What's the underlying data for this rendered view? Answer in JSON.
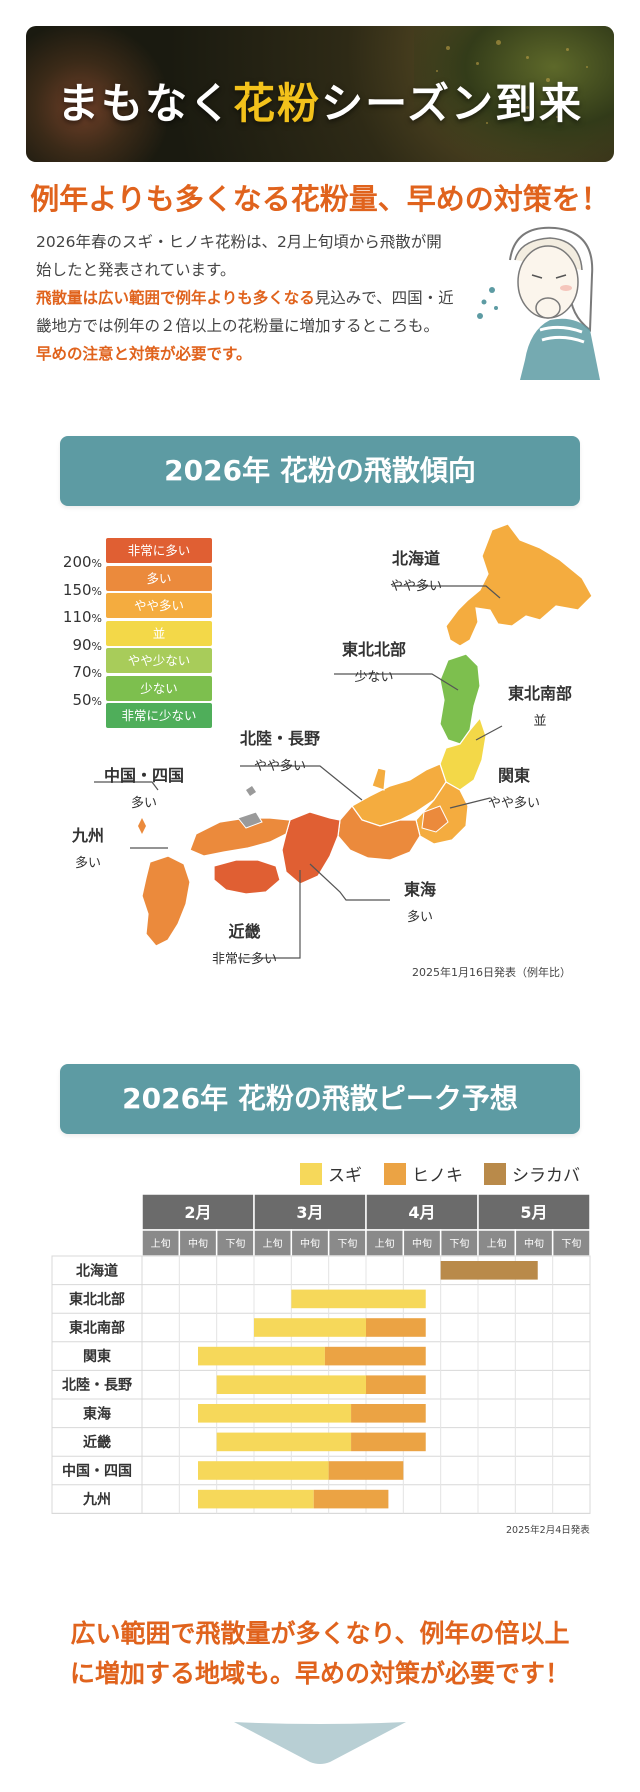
{
  "hero": {
    "title_before": "まもなく",
    "title_highlight": "花粉",
    "title_after": "シーズン到来"
  },
  "headline": "例年よりも多くなる花粉量、早めの対策を！",
  "intro": {
    "p1": "2026年春のスギ・ヒノキ花粉は、2月上旬頃から飛散が開始したと発表されています。",
    "p2_em": "飛散量は広い範囲で例年よりも多くなる",
    "p2_rest": "見込みで、四国・近畿地方では例年の２倍以上の花粉量に増加するところも。",
    "p2_em2": "早めの注意と対策が必要です。"
  },
  "section1": {
    "title": "2026年 花粉の飛散傾向",
    "legend": [
      {
        "label": "非常に多い",
        "pct": "200",
        "color": "#e05f33"
      },
      {
        "label": "多い",
        "pct": "150",
        "color": "#eb8a3c"
      },
      {
        "label": "やや多い",
        "pct": "110",
        "color": "#f4ac3f"
      },
      {
        "label": "並",
        "pct": "90",
        "color": "#f3d848"
      },
      {
        "label": "やや少ない",
        "pct": "70",
        "color": "#a8cc5a"
      },
      {
        "label": "少ない",
        "pct": "50",
        "color": "#7dbf4e"
      },
      {
        "label": "非常に少ない",
        "pct": "",
        "color": "#4fae5a"
      }
    ],
    "pct_unit": "%",
    "regions": {
      "hokkaido": {
        "name": "北海道",
        "level": "やや多い"
      },
      "tohoku_n": {
        "name": "東北北部",
        "level": "少ない"
      },
      "tohoku_s": {
        "name": "東北南部",
        "level": "並"
      },
      "hokuriku": {
        "name": "北陸・長野",
        "level": "やや多い"
      },
      "kanto": {
        "name": "関東",
        "level": "やや多い"
      },
      "chugoku": {
        "name": "中国・四国",
        "level": "多い"
      },
      "kyushu": {
        "name": "九州",
        "level": "多い"
      },
      "tokai": {
        "name": "東海",
        "level": "多い"
      },
      "kinki": {
        "name": "近畿",
        "level": "非常に多い"
      }
    },
    "note": "2025年1月16日発表（例年比）"
  },
  "section2": {
    "title": "2026年 花粉の飛散ピーク予想",
    "note": "2025年2月4日発表"
  },
  "colors": {
    "sugi": "#f6d85a",
    "hinoki": "#eba344",
    "shirakaba": "#b98a4a",
    "month_header": "#6b6b6b",
    "banner": "#5d9ba3",
    "accent": "#e0631d"
  },
  "chart_data": {
    "type": "gantt",
    "title": "2026年 花粉の飛散ピーク予想",
    "months": [
      "2月",
      "3月",
      "4月",
      "5月"
    ],
    "periods": [
      "上旬",
      "中旬",
      "下旬"
    ],
    "x_unit": "旬 (0 = 2月上旬の開始)",
    "legend": [
      "スギ",
      "ヒノキ",
      "シラカバ"
    ],
    "rows": [
      {
        "region": "北海道",
        "bars": [
          {
            "type": "シラカバ",
            "start": 8.0,
            "end": 10.6
          }
        ]
      },
      {
        "region": "東北北部",
        "bars": [
          {
            "type": "スギ",
            "start": 4.0,
            "end": 7.6
          }
        ]
      },
      {
        "region": "東北南部",
        "bars": [
          {
            "type": "スギ",
            "start": 3.0,
            "end": 6.0
          },
          {
            "type": "ヒノキ",
            "start": 6.0,
            "end": 7.6
          }
        ]
      },
      {
        "region": "関東",
        "bars": [
          {
            "type": "スギ",
            "start": 1.5,
            "end": 4.9
          },
          {
            "type": "ヒノキ",
            "start": 4.9,
            "end": 7.6
          }
        ]
      },
      {
        "region": "北陸・長野",
        "bars": [
          {
            "type": "スギ",
            "start": 2.0,
            "end": 6.0
          },
          {
            "type": "ヒノキ",
            "start": 6.0,
            "end": 7.6
          }
        ]
      },
      {
        "region": "東海",
        "bars": [
          {
            "type": "スギ",
            "start": 1.5,
            "end": 5.6
          },
          {
            "type": "ヒノキ",
            "start": 5.6,
            "end": 7.6
          }
        ]
      },
      {
        "region": "近畿",
        "bars": [
          {
            "type": "スギ",
            "start": 2.0,
            "end": 5.6
          },
          {
            "type": "ヒノキ",
            "start": 5.6,
            "end": 7.6
          }
        ]
      },
      {
        "region": "中国・四国",
        "bars": [
          {
            "type": "スギ",
            "start": 1.5,
            "end": 5.0
          },
          {
            "type": "ヒノキ",
            "start": 5.0,
            "end": 7.0
          }
        ]
      },
      {
        "region": "九州",
        "bars": [
          {
            "type": "スギ",
            "start": 1.5,
            "end": 4.6
          },
          {
            "type": "ヒノキ",
            "start": 4.6,
            "end": 6.6
          }
        ]
      }
    ],
    "note": "2025年2月4日発表"
  },
  "closing": {
    "line1": "広い範囲で飛散量が多くなり、例年の倍以上",
    "line2": "に増加する地域も。早めの対策が必要です！"
  }
}
